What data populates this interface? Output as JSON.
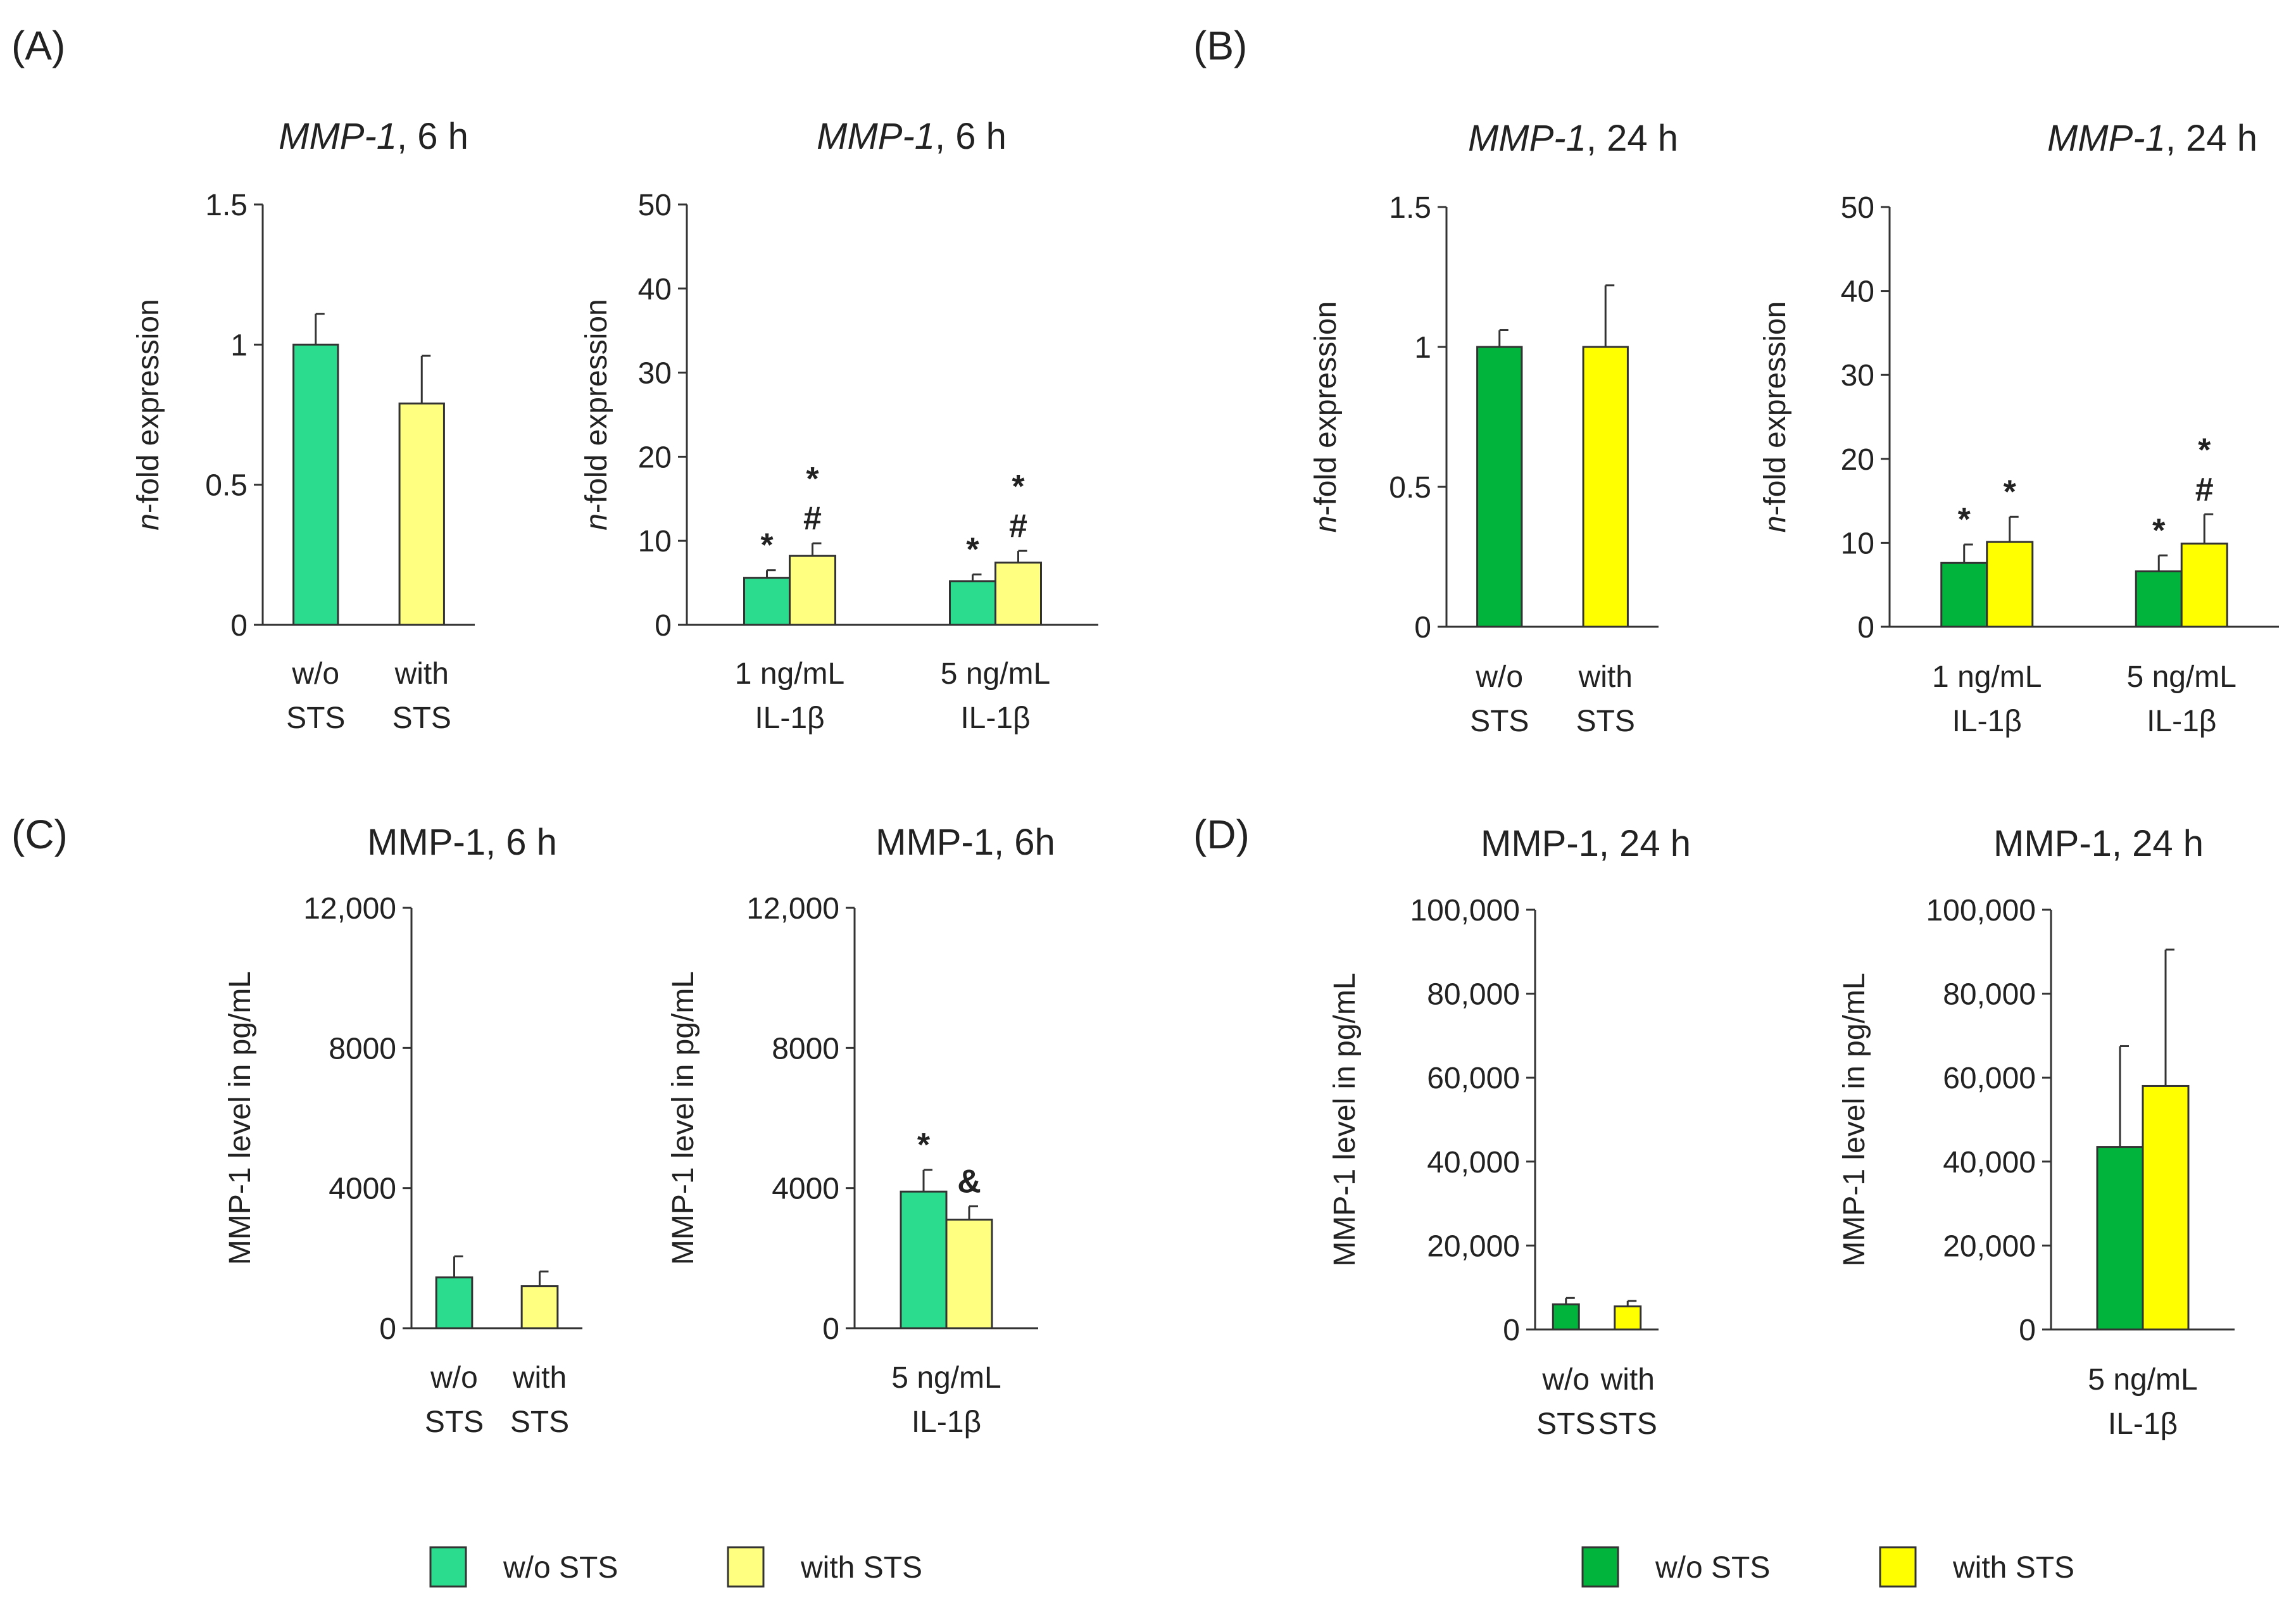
{
  "panels": [
    {
      "label": "(A)"
    },
    {
      "label": "(B)"
    },
    {
      "label": "(C)"
    },
    {
      "label": "(D)"
    }
  ],
  "legends": [
    {
      "items": [
        {
          "name": "w/o STS",
          "color": "#2BDB8E"
        },
        {
          "name": "with STS",
          "color": "#FFFF80"
        }
      ]
    },
    {
      "items": [
        {
          "name": "w/o STS",
          "color": "#00B43C"
        },
        {
          "name": "with STS",
          "color": "#FFFF00"
        }
      ]
    }
  ],
  "chart_data": [
    {
      "type": "bar",
      "panel": "(A)",
      "title_italic": "MMP-1",
      "title_rest": ", 6 h",
      "ylabel_italic": "n",
      "ylabel_rest": "-fold expression",
      "ylim": [
        0,
        1.5
      ],
      "yticks": [
        "0",
        "0.5",
        "1",
        "1.5"
      ],
      "ytick_values": [
        0,
        0.5,
        1,
        1.5
      ],
      "categories": [
        [
          "w/o",
          "STS"
        ],
        [
          "with",
          "STS"
        ]
      ],
      "series": [
        {
          "name": "w/o STS",
          "color": "#2BDB8E",
          "values": [
            1.0,
            null
          ],
          "errors": [
            0.11,
            null
          ]
        },
        {
          "name": "with STS",
          "color": "#FFFF80",
          "values": [
            null,
            0.79
          ],
          "errors": [
            null,
            0.17
          ]
        }
      ],
      "annotations": []
    },
    {
      "type": "bar",
      "panel": "(A)",
      "title_italic": "MMP-1",
      "title_rest": ", 6 h",
      "ylabel_italic": "n",
      "ylabel_rest": "-fold expression",
      "ylim": [
        0,
        50
      ],
      "yticks": [
        "0",
        "10",
        "20",
        "30",
        "40",
        "50"
      ],
      "ytick_values": [
        0,
        10,
        20,
        30,
        40,
        50
      ],
      "categories": [
        [
          "1 ng/mL",
          "IL-1β"
        ],
        [
          "5 ng/mL",
          "IL-1β"
        ]
      ],
      "series": [
        {
          "name": "w/o STS",
          "color": "#2BDB8E",
          "values": [
            5.6,
            5.2
          ],
          "errors": [
            0.9,
            0.8
          ]
        },
        {
          "name": "with STS",
          "color": "#FFFF80",
          "values": [
            8.2,
            7.4
          ],
          "errors": [
            1.5,
            1.4
          ]
        }
      ],
      "annotations": [
        {
          "category": 0,
          "series": 0,
          "lines": [
            "*"
          ]
        },
        {
          "category": 0,
          "series": 1,
          "lines": [
            "*",
            "#"
          ]
        },
        {
          "category": 1,
          "series": 0,
          "lines": [
            "*"
          ]
        },
        {
          "category": 1,
          "series": 1,
          "lines": [
            "*",
            "#"
          ]
        }
      ]
    },
    {
      "type": "bar",
      "panel": "(B)",
      "title_italic": "MMP-1",
      "title_rest": ", 24 h",
      "ylabel_italic": "n",
      "ylabel_rest": "-fold expression",
      "ylim": [
        0,
        1.5
      ],
      "yticks": [
        "0",
        "0.5",
        "1",
        "1.5"
      ],
      "ytick_values": [
        0,
        0.5,
        1,
        1.5
      ],
      "categories": [
        [
          "w/o",
          "STS"
        ],
        [
          "with",
          "STS"
        ]
      ],
      "series": [
        {
          "name": "w/o STS",
          "color": "#00B43C",
          "values": [
            1.0,
            null
          ],
          "errors": [
            0.06,
            null
          ]
        },
        {
          "name": "with STS",
          "color": "#FFFF00",
          "values": [
            null,
            1.0
          ],
          "errors": [
            null,
            0.22
          ]
        }
      ],
      "annotations": []
    },
    {
      "type": "bar",
      "panel": "(B)",
      "title_italic": "MMP-1",
      "title_rest": ", 24 h",
      "ylabel_italic": "n",
      "ylabel_rest": "-fold expression",
      "ylim": [
        0,
        50
      ],
      "yticks": [
        "0",
        "10",
        "20",
        "30",
        "40",
        "50"
      ],
      "ytick_values": [
        0,
        10,
        20,
        30,
        40,
        50
      ],
      "categories": [
        [
          "1 ng/mL",
          "IL-1β"
        ],
        [
          "5 ng/mL",
          "IL-1β"
        ]
      ],
      "series": [
        {
          "name": "w/o STS",
          "color": "#00B43C",
          "values": [
            7.6,
            6.6
          ],
          "errors": [
            2.2,
            1.9
          ]
        },
        {
          "name": "with STS",
          "color": "#FFFF00",
          "values": [
            10.1,
            9.9
          ],
          "errors": [
            3.0,
            3.5
          ]
        }
      ],
      "annotations": [
        {
          "category": 0,
          "series": 0,
          "lines": [
            "*"
          ]
        },
        {
          "category": 0,
          "series": 1,
          "lines": [
            "*"
          ]
        },
        {
          "category": 1,
          "series": 0,
          "lines": [
            "*"
          ]
        },
        {
          "category": 1,
          "series": 1,
          "lines": [
            "*",
            "#"
          ]
        }
      ]
    },
    {
      "type": "bar",
      "panel": "(C)",
      "title_italic": "",
      "title_rest": "MMP-1, 6 h",
      "ylabel_italic": "",
      "ylabel_rest": "MMP-1 level in pg/mL",
      "ylim": [
        0,
        12000
      ],
      "yticks": [
        "0",
        "4000",
        "8000",
        "12,000"
      ],
      "ytick_values": [
        0,
        4000,
        8000,
        12000
      ],
      "categories": [
        [
          "w/o",
          "STS"
        ],
        [
          "with",
          "STS"
        ]
      ],
      "series": [
        {
          "name": "w/o STS",
          "color": "#2BDB8E",
          "values": [
            1450,
            null
          ],
          "errors": [
            600,
            null
          ]
        },
        {
          "name": "with STS",
          "color": "#FFFF80",
          "values": [
            null,
            1200
          ],
          "errors": [
            null,
            420
          ]
        }
      ],
      "annotations": []
    },
    {
      "type": "bar",
      "panel": "(C)",
      "title_italic": "",
      "title_rest": "MMP-1, 6h",
      "ylabel_italic": "",
      "ylabel_rest": "MMP-1 level in pg/mL",
      "ylim": [
        0,
        12000
      ],
      "yticks": [
        "0",
        "4000",
        "8000",
        "12,000"
      ],
      "ytick_values": [
        0,
        4000,
        8000,
        12000
      ],
      "categories": [
        [
          "5 ng/mL",
          "IL-1β"
        ]
      ],
      "series": [
        {
          "name": "w/o STS",
          "color": "#2BDB8E",
          "values": [
            3900
          ],
          "errors": [
            620
          ]
        },
        {
          "name": "with STS",
          "color": "#FFFF80",
          "values": [
            3100
          ],
          "errors": [
            380
          ]
        }
      ],
      "annotations": [
        {
          "category": 0,
          "series": 0,
          "lines": [
            "*"
          ]
        },
        {
          "category": 0,
          "series": 1,
          "lines": [
            "&"
          ]
        }
      ]
    },
    {
      "type": "bar",
      "panel": "(D)",
      "title_italic": "",
      "title_rest": "MMP-1, 24 h",
      "ylabel_italic": "",
      "ylabel_rest": "MMP-1 level in pg/mL",
      "ylim": [
        0,
        100000
      ],
      "yticks": [
        "0",
        "20,000",
        "40,000",
        "60,000",
        "80,000",
        "100,000"
      ],
      "ytick_values": [
        0,
        20000,
        40000,
        60000,
        80000,
        100000
      ],
      "categories": [
        [
          "w/o",
          "STS"
        ],
        [
          "with",
          "STS"
        ]
      ],
      "series": [
        {
          "name": "w/o STS",
          "color": "#00B43C",
          "values": [
            6000,
            null
          ],
          "errors": [
            1500,
            null
          ]
        },
        {
          "name": "with STS",
          "color": "#FFFF00",
          "values": [
            null,
            5500
          ],
          "errors": [
            null,
            1300
          ]
        }
      ],
      "annotations": []
    },
    {
      "type": "bar",
      "panel": "(D)",
      "title_italic": "",
      "title_rest": "MMP-1, 24 h",
      "ylabel_italic": "",
      "ylabel_rest": "MMP-1 level in pg/mL",
      "ylim": [
        0,
        100000
      ],
      "yticks": [
        "0",
        "20,000",
        "40,000",
        "60,000",
        "80,000",
        "100,000"
      ],
      "ytick_values": [
        0,
        20000,
        40000,
        60000,
        80000,
        100000
      ],
      "categories": [
        [
          "5 ng/mL",
          "IL-1β"
        ]
      ],
      "series": [
        {
          "name": "w/o STS",
          "color": "#00B43C",
          "values": [
            43500
          ],
          "errors": [
            24000
          ]
        },
        {
          "name": "with STS",
          "color": "#FFFF00",
          "values": [
            58000
          ],
          "errors": [
            32500
          ]
        }
      ],
      "annotations": []
    }
  ]
}
